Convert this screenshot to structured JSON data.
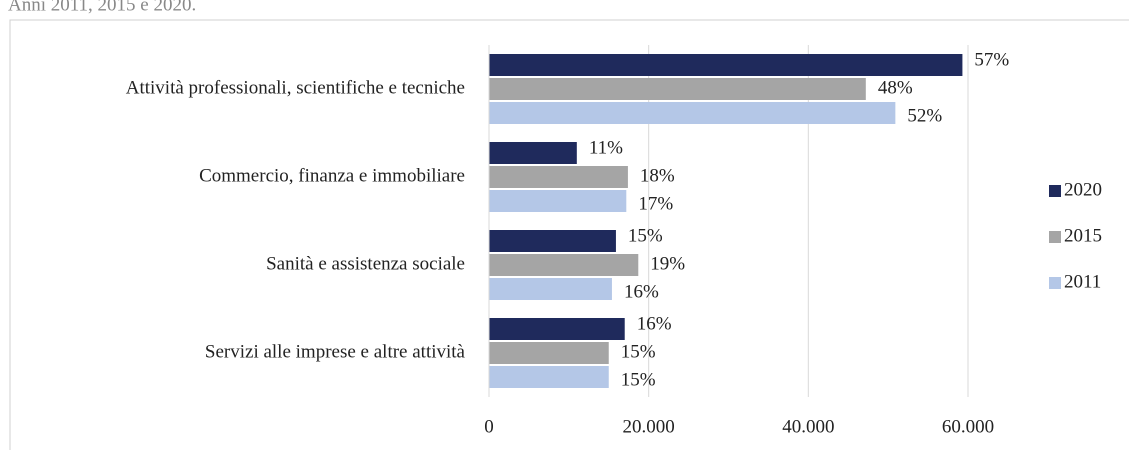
{
  "chart_data": {
    "type": "hbar",
    "subtitle": "Anni 2011, 2015 e 2020.",
    "categories": [
      "Attività professionali, scientifiche e tecniche",
      "Commercio, finanza e immobiliare",
      "Sanità e assistenza sociale",
      "Servizi alle imprese e altre attività"
    ],
    "series": [
      {
        "name": "2020",
        "color": "#1f2a5c",
        "values": [
          59300,
          11000,
          15900,
          17000
        ],
        "share_labels": [
          "57%",
          "11%",
          "15%",
          "16%"
        ]
      },
      {
        "name": "2015",
        "color": "#a5a5a5",
        "values": [
          47200,
          17400,
          18700,
          15000
        ],
        "share_labels": [
          "48%",
          "18%",
          "19%",
          "15%"
        ]
      },
      {
        "name": "2011",
        "color": "#b4c7e7",
        "values": [
          50900,
          17200,
          15400,
          15000
        ],
        "share_labels": [
          "52%",
          "17%",
          "16%",
          "15%"
        ]
      }
    ],
    "xlim": [
      0,
      60000
    ],
    "xticks": [
      0,
      {
        "value": 20000,
        "label": "20.000"
      },
      {
        "value": 40000,
        "label": "40.000"
      },
      {
        "value": 60000,
        "label": "60.000"
      }
    ],
    "grid": true,
    "legend": "right"
  }
}
